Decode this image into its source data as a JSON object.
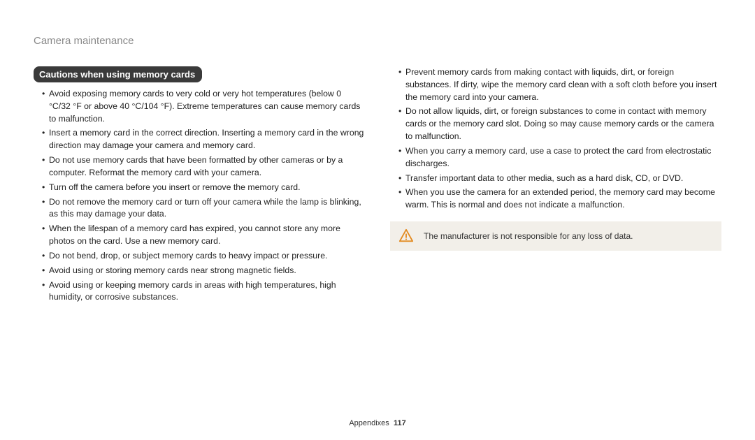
{
  "header": {
    "title": "Camera maintenance"
  },
  "section": {
    "heading": "Cautions when using memory cards"
  },
  "left_bullets": [
    "Avoid exposing memory cards to very cold or very hot temperatures (below 0 °C/32 °F or above 40 °C/104 °F). Extreme temperatures can cause memory cards to malfunction.",
    "Insert a memory card in the correct direction. Inserting a memory card in the wrong direction may damage your camera and memory card.",
    "Do not use memory cards that have been formatted by other cameras or by a computer. Reformat the memory card with your camera.",
    "Turn off the camera before you insert or remove the memory card.",
    "Do not remove the memory card or turn off your camera while the lamp is blinking, as this may damage your data.",
    "When the lifespan of a memory card has expired, you cannot store any more photos on the card. Use a new memory card.",
    "Do not bend, drop, or subject memory cards to heavy impact or pressure.",
    "Avoid using or storing memory cards near strong magnetic fields.",
    "Avoid using or keeping memory cards in areas with high temperatures, high humidity, or corrosive substances."
  ],
  "right_bullets": [
    "Prevent memory cards from making contact with liquids, dirt, or foreign substances. If dirty, wipe the memory card clean with a soft cloth before you insert the memory card into your camera.",
    "Do not allow liquids, dirt, or foreign substances to come in contact with memory cards or the memory card slot. Doing so may cause memory cards or the camera to malfunction.",
    "When you carry a memory card, use a case to protect the card from electrostatic discharges.",
    "Transfer important data to other media, such as a hard disk, CD, or DVD.",
    "When you use the camera for an extended period, the memory card may become warm. This is normal and does not indicate a malfunction."
  ],
  "note": {
    "icon_color": "#e38a1f",
    "text": "The manufacturer is not responsible for any loss of data."
  },
  "footer": {
    "section": "Appendixes",
    "page": "117"
  },
  "colors": {
    "header_color": "#8a8a8a",
    "heading_bg": "#3a3a3a",
    "heading_text": "#ffffff",
    "body_text": "#222222",
    "note_bg": "#f2efe9"
  }
}
